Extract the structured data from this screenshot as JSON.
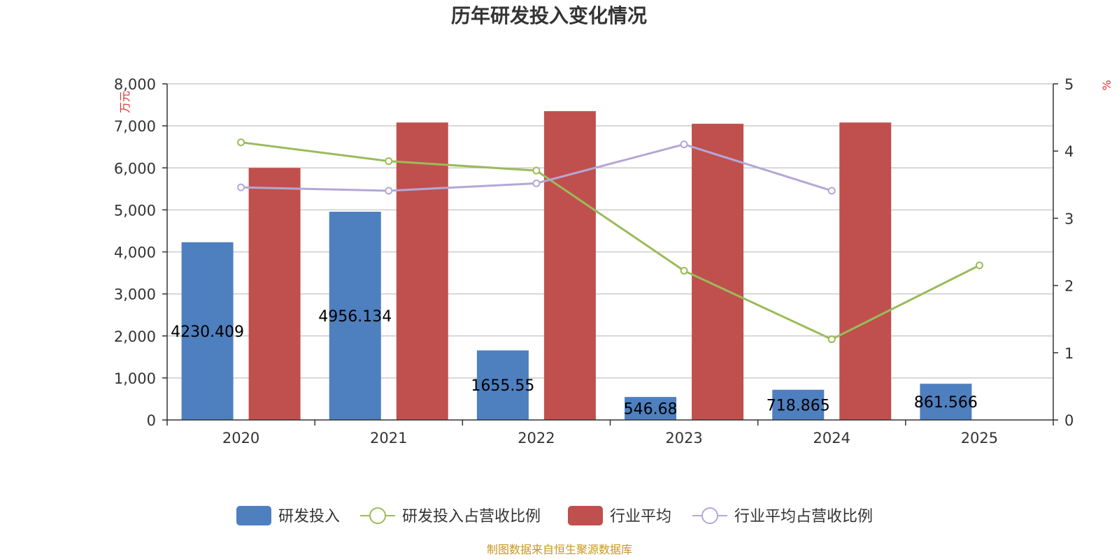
{
  "chart_data": {
    "type": "bar",
    "title": "历年研发投入变化情况",
    "categories": [
      "2020",
      "2021",
      "2022",
      "2023",
      "2024",
      "2025"
    ],
    "left_axis": {
      "unit": "万元",
      "ylim": [
        0,
        8000
      ],
      "ticks": [
        "0",
        "1,000",
        "2,000",
        "3,000",
        "4,000",
        "5,000",
        "6,000",
        "7,000",
        "8,000"
      ]
    },
    "right_axis": {
      "unit": "%",
      "ylim": [
        0,
        5
      ],
      "ticks": [
        "0",
        "1",
        "2",
        "3",
        "4",
        "5"
      ]
    },
    "series": [
      {
        "name": "研发投入",
        "type": "bar",
        "axis": "left",
        "color": "#4e7fbf",
        "values": [
          4230.409,
          4956.134,
          1655.55,
          546.68,
          718.865,
          861.566
        ],
        "labels": [
          "4230.409",
          "4956.134",
          "1655.55",
          "546.68",
          "718.865",
          "861.566"
        ]
      },
      {
        "name": "行业平均",
        "type": "bar",
        "axis": "left",
        "color": "#c0504d",
        "values": [
          6000,
          7080,
          7350,
          7050,
          7080,
          null
        ]
      },
      {
        "name": "研发投入占营收比例",
        "type": "line",
        "axis": "right",
        "color": "#9bbb59",
        "values": [
          4.13,
          3.85,
          3.71,
          2.22,
          1.2,
          2.3
        ]
      },
      {
        "name": "行业平均占营收比例",
        "type": "line",
        "axis": "right",
        "color": "#b4a7d6",
        "values": [
          3.46,
          3.41,
          3.52,
          4.1,
          3.41,
          null
        ]
      }
    ],
    "grid": true,
    "legend_position": "bottom"
  },
  "source_note": "制图数据来自恒生聚源数据库"
}
